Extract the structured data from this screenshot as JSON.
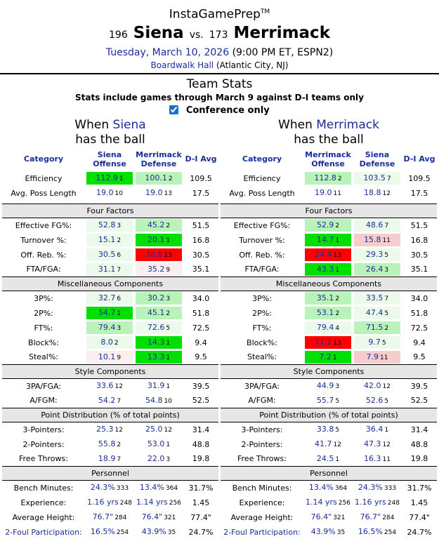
{
  "header": {
    "brand": "InstaGamePrep",
    "brand_tm": "TM",
    "away_rank": "196",
    "away_team": "Siena",
    "vs": "vs.",
    "home_rank": "173",
    "home_team": "Merrimack",
    "date": "Tuesday, March 10, 2026",
    "time_network": "(9:00 PM ET, ESPN2)",
    "venue_name": "Boardwalk Hall",
    "venue_location": "(Atlantic City, NJ)"
  },
  "team_stats": {
    "title": "Team Stats",
    "subtitle": "Stats include games through March 9 against D-I teams only",
    "conference_only_label": "Conference only",
    "conference_only_checked": true
  },
  "colors": {
    "g4": "#00e000",
    "g3": "#6fef6f",
    "g2": "#b9f3b9",
    "g1": "#ebfaeb",
    "r1": "#fbeeee",
    "r2": "#f6cccc",
    "r4": "#ff0000"
  },
  "panels": [
    {
      "title_pre": "When ",
      "title_team": "Siena",
      "title_post": "has the ball",
      "headers": {
        "category": "Category",
        "offense": "Siena Offense",
        "defense": "Merrimack Defense",
        "avg": "D-I Avg"
      },
      "top_rows": [
        {
          "label": "Efficiency",
          "o": "112.9",
          "or": "1",
          "oc": "g4",
          "d": "100.1",
          "dr": "2",
          "dc": "g2",
          "avg": "109.5"
        },
        {
          "label": "Avg. Poss Length",
          "o": "19.0",
          "or": "10",
          "oc": "",
          "d": "19.0",
          "dr": "13",
          "dc": "",
          "avg": "17.5"
        }
      ],
      "sections": [
        {
          "title": "Four Factors",
          "rows": [
            {
              "label": "Effective FG%:",
              "o": "52.8",
              "or": "3",
              "oc": "g1",
              "d": "45.2",
              "dr": "2",
              "dc": "g2",
              "avg": "51.5"
            },
            {
              "label": "Turnover %:",
              "o": "15.1",
              "or": "2",
              "oc": "g1",
              "d": "20.1",
              "dr": "1",
              "dc": "g4",
              "avg": "16.8"
            },
            {
              "label": "Off. Reb. %:",
              "o": "30.5",
              "or": "6",
              "oc": "g1",
              "d": "38.8",
              "dr": "13",
              "dc": "r4",
              "avg": "30.5"
            },
            {
              "label": "FTA/FGA:",
              "o": "31.1",
              "or": "7",
              "oc": "g1",
              "d": "35.2",
              "dr": "9",
              "dc": "r1",
              "avg": "35.1"
            }
          ]
        },
        {
          "title": "Miscellaneous Components",
          "rows": [
            {
              "label": "3P%:",
              "o": "32.7",
              "or": "6",
              "oc": "g1",
              "d": "30.2",
              "dr": "3",
              "dc": "g2",
              "avg": "34.0"
            },
            {
              "label": "2P%:",
              "o": "54.7",
              "or": "1",
              "oc": "g4",
              "d": "45.1",
              "dr": "2",
              "dc": "g2",
              "avg": "51.8"
            },
            {
              "label": "FT%:",
              "o": "79.4",
              "or": "3",
              "oc": "g2",
              "d": "72.6",
              "dr": "5",
              "dc": "g1",
              "avg": "72.5"
            },
            {
              "label": "Block%:",
              "o": "8.0",
              "or": "2",
              "oc": "g1",
              "d": "14.3",
              "dr": "1",
              "dc": "g4",
              "avg": "9.4"
            },
            {
              "label": "Steal%:",
              "o": "10.1",
              "or": "9",
              "oc": "r1",
              "d": "13.3",
              "dr": "1",
              "dc": "g4",
              "avg": "9.5"
            }
          ]
        },
        {
          "title": "Style Components",
          "rows": [
            {
              "label": "3PA/FGA:",
              "o": "33.6",
              "or": "12",
              "oc": "",
              "d": "31.9",
              "dr": "1",
              "dc": "",
              "avg": "39.5"
            },
            {
              "label": "A/FGM:",
              "o": "54.2",
              "or": "7",
              "oc": "",
              "d": "54.8",
              "dr": "10",
              "dc": "",
              "avg": "52.5"
            }
          ]
        },
        {
          "title": "Point Distribution (% of total points)",
          "rows": [
            {
              "label": "3-Pointers:",
              "o": "25.3",
              "or": "12",
              "oc": "",
              "d": "25.0",
              "dr": "12",
              "dc": "",
              "avg": "31.4"
            },
            {
              "label": "2-Pointers:",
              "o": "55.8",
              "or": "2",
              "oc": "",
              "d": "53.0",
              "dr": "1",
              "dc": "",
              "avg": "48.8"
            },
            {
              "label": "Free Throws:",
              "o": "18.9",
              "or": "7",
              "oc": "",
              "d": "22.0",
              "dr": "3",
              "dc": "",
              "avg": "19.8"
            }
          ]
        },
        {
          "title": "Personnel",
          "rows": [
            {
              "label": "Bench Minutes:",
              "o": "24.3%",
              "or": "333",
              "oc": "",
              "d": "13.4%",
              "dr": "364",
              "dc": "",
              "avg": "31.7%"
            },
            {
              "label": "Experience:",
              "o": "1.16 yrs",
              "or": "248",
              "oc": "",
              "d": "1.14 yrs",
              "dr": "256",
              "dc": "",
              "avg": "1.45"
            },
            {
              "label": "Average Height:",
              "o": "76.7\"",
              "or": "284",
              "oc": "",
              "d": "76.4\"",
              "dr": "321",
              "dc": "",
              "avg": "77.4\""
            },
            {
              "label": "2-Foul Participation:",
              "label_link": true,
              "o": "16.5%",
              "or": "254",
              "oc": "",
              "d": "43.9%",
              "dr": "35",
              "dc": "",
              "avg": "24.7%"
            }
          ]
        }
      ]
    },
    {
      "title_pre": "When ",
      "title_team": "Merrimack",
      "title_post": "has the ball",
      "headers": {
        "category": "Category",
        "offense": "Merrimack Offense",
        "defense": "Siena Defense",
        "avg": "D-I Avg"
      },
      "top_rows": [
        {
          "label": "Efficiency",
          "o": "112.8",
          "or": "2",
          "oc": "g2",
          "d": "103.5",
          "dr": "7",
          "dc": "g1",
          "avg": "109.5"
        },
        {
          "label": "Avg. Poss Length",
          "o": "19.0",
          "or": "11",
          "oc": "",
          "d": "18.8",
          "dr": "12",
          "dc": "",
          "avg": "17.5"
        }
      ],
      "sections": [
        {
          "title": "Four Factors",
          "rows": [
            {
              "label": "Effective FG%:",
              "o": "52.9",
              "or": "2",
              "oc": "g2",
              "d": "48.6",
              "dr": "7",
              "dc": "g1",
              "avg": "51.5"
            },
            {
              "label": "Turnover %:",
              "o": "14.7",
              "or": "1",
              "oc": "g4",
              "d": "15.8",
              "dr": "11",
              "dc": "r2",
              "avg": "16.8"
            },
            {
              "label": "Off. Reb. %:",
              "o": "24.4",
              "or": "13",
              "oc": "r4",
              "d": "29.3",
              "dr": "5",
              "dc": "g1",
              "avg": "30.5"
            },
            {
              "label": "FTA/FGA:",
              "o": "43.3",
              "or": "1",
              "oc": "g4",
              "d": "26.4",
              "dr": "3",
              "dc": "g2",
              "avg": "35.1"
            }
          ]
        },
        {
          "title": "Miscellaneous Components",
          "rows": [
            {
              "label": "3P%:",
              "o": "35.1",
              "or": "2",
              "oc": "g2",
              "d": "33.5",
              "dr": "7",
              "dc": "g1",
              "avg": "34.0"
            },
            {
              "label": "2P%:",
              "o": "53.1",
              "or": "2",
              "oc": "g2",
              "d": "47.4",
              "dr": "5",
              "dc": "g1",
              "avg": "51.8"
            },
            {
              "label": "FT%:",
              "o": "79.4",
              "or": "4",
              "oc": "g1",
              "d": "71.5",
              "dr": "2",
              "dc": "g2",
              "avg": "72.5"
            },
            {
              "label": "Block%:",
              "o": "11.1",
              "or": "13",
              "oc": "r4",
              "d": "9.7",
              "dr": "5",
              "dc": "g1",
              "avg": "9.4"
            },
            {
              "label": "Steal%:",
              "o": "7.2",
              "or": "1",
              "oc": "g4",
              "d": "7.9",
              "dr": "11",
              "dc": "r2",
              "avg": "9.5"
            }
          ]
        },
        {
          "title": "Style Components",
          "rows": [
            {
              "label": "3PA/FGA:",
              "o": "44.9",
              "or": "3",
              "oc": "",
              "d": "42.0",
              "dr": "12",
              "dc": "",
              "avg": "39.5"
            },
            {
              "label": "A/FGM:",
              "o": "55.7",
              "or": "5",
              "oc": "",
              "d": "52.6",
              "dr": "5",
              "dc": "",
              "avg": "52.5"
            }
          ]
        },
        {
          "title": "Point Distribution (% of total points)",
          "rows": [
            {
              "label": "3-Pointers:",
              "o": "33.8",
              "or": "5",
              "oc": "",
              "d": "36.4",
              "dr": "1",
              "dc": "",
              "avg": "31.4"
            },
            {
              "label": "2-Pointers:",
              "o": "41.7",
              "or": "12",
              "oc": "",
              "d": "47.3",
              "dr": "12",
              "dc": "",
              "avg": "48.8"
            },
            {
              "label": "Free Throws:",
              "o": "24.5",
              "or": "1",
              "oc": "",
              "d": "16.3",
              "dr": "11",
              "dc": "",
              "avg": "19.8"
            }
          ]
        },
        {
          "title": "Personnel",
          "rows": [
            {
              "label": "Bench Minutes:",
              "o": "13.4%",
              "or": "364",
              "oc": "",
              "d": "24.3%",
              "dr": "333",
              "dc": "",
              "avg": "31.7%"
            },
            {
              "label": "Experience:",
              "o": "1.14 yrs",
              "or": "256",
              "oc": "",
              "d": "1.16 yrs",
              "dr": "248",
              "dc": "",
              "avg": "1.45"
            },
            {
              "label": "Average Height:",
              "o": "76.4\"",
              "or": "321",
              "oc": "",
              "d": "76.7\"",
              "dr": "284",
              "dc": "",
              "avg": "77.4\""
            },
            {
              "label": "2-Foul Participation:",
              "label_link": true,
              "o": "43.9%",
              "or": "35",
              "oc": "",
              "d": "16.5%",
              "dr": "254",
              "dc": "",
              "avg": "24.7%"
            }
          ]
        }
      ]
    }
  ]
}
